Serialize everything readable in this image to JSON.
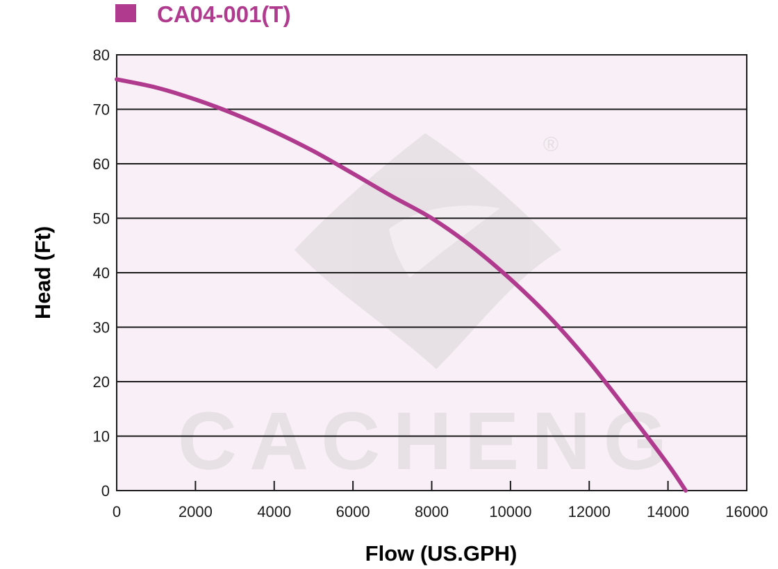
{
  "chart_data": {
    "type": "line",
    "legend": {
      "placement": "top-left"
    },
    "series": [
      {
        "name": "CA04-001(T)",
        "color": "#b03a8e",
        "x": [
          0,
          1000,
          2000,
          3000,
          4000,
          5000,
          6000,
          7000,
          8000,
          9000,
          10000,
          11000,
          12000,
          13000,
          14000,
          14450
        ],
        "y": [
          75.5,
          74.0,
          71.8,
          69.1,
          65.9,
          62.3,
          58.2,
          54.0,
          50.0,
          44.9,
          38.8,
          31.8,
          23.6,
          14.4,
          4.8,
          0
        ]
      }
    ],
    "xlabel": "Flow (US.GPH)",
    "ylabel": "Head (Ft)",
    "xlim": [
      0,
      16000
    ],
    "ylim": [
      0,
      80
    ],
    "xticks": [
      "0",
      "2000",
      "4000",
      "6000",
      "8000",
      "10000",
      "12000",
      "14000",
      "16000"
    ],
    "yticks": [
      "0",
      "10",
      "20",
      "30",
      "40",
      "50",
      "60",
      "70",
      "80"
    ],
    "grid": "horizontal",
    "plot_background": "#f8f0f6",
    "watermark": {
      "text": "CACHENG",
      "registered_mark": "®"
    }
  }
}
